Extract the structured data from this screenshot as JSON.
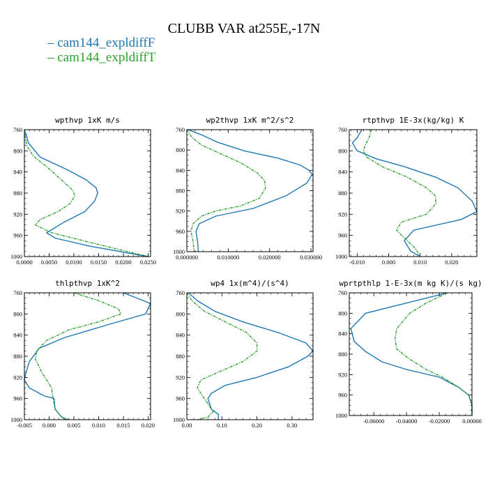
{
  "title": "CLUBB VAR at255E,-17N",
  "colors": {
    "series1": "#1f77b4",
    "series2": "#2ca02c"
  },
  "legend": [
    {
      "label": "cam144_expldiffF",
      "color": "#1f77b4"
    },
    {
      "label": "cam144_expldiffT",
      "color": "#2ca02c"
    }
  ],
  "chart_data": [
    {
      "type": "line",
      "title": "wpthvp  1xK m/s",
      "xlim": [
        0.0,
        0.0255
      ],
      "ylim": [
        760,
        1000
      ],
      "xticks": [
        0.0,
        0.005,
        0.01,
        0.015,
        0.02,
        0.025
      ],
      "xtick_labels": [
        "0.0000",
        "0.0050",
        "0.0100",
        "0.0150",
        "0.0200",
        "0.0250"
      ],
      "yticks": [
        760,
        800,
        840,
        880,
        920,
        960,
        1000
      ],
      "series": [
        {
          "name": "cam144_expldiffF",
          "x": [
            0.0,
            0.0004,
            0.0008,
            0.0032,
            0.0085,
            0.0125,
            0.0145,
            0.0148,
            0.0142,
            0.0122,
            0.008,
            0.0045,
            0.0062,
            0.013,
            0.025
          ],
          "y": [
            760,
            770,
            785,
            812,
            835,
            855,
            870,
            880,
            895,
            915,
            935,
            955,
            965,
            980,
            1000
          ]
        },
        {
          "name": "cam144_expldiffT",
          "x": [
            0.0,
            0.0002,
            0.0005,
            0.0018,
            0.0045,
            0.0075,
            0.0098,
            0.0102,
            0.0092,
            0.0068,
            0.0032,
            0.0022,
            0.0055,
            0.014,
            0.025
          ],
          "y": [
            760,
            775,
            790,
            810,
            830,
            855,
            875,
            885,
            900,
            915,
            930,
            940,
            955,
            975,
            1000
          ]
        }
      ]
    },
    {
      "type": "line",
      "title": "wp2thvp  1xK m^2/s^2",
      "xlim": [
        0.0,
        0.0305
      ],
      "ylim": [
        760,
        1000
      ],
      "xticks": [
        0.0,
        0.01,
        0.02,
        0.03
      ],
      "xtick_labels": [
        "0.000000",
        "0.010000",
        "0.020000",
        "0.030000"
      ],
      "yticks": [
        760,
        800,
        840,
        880,
        920,
        960,
        1000
      ],
      "series": [
        {
          "name": "cam144_expldiffF",
          "x": [
            0.0003,
            0.0035,
            0.0075,
            0.014,
            0.022,
            0.0275,
            0.0295,
            0.0303,
            0.029,
            0.024,
            0.016,
            0.007,
            0.003,
            0.0022,
            0.0026,
            0.0028
          ],
          "y": [
            760,
            770,
            785,
            802,
            816,
            830,
            840,
            848,
            865,
            890,
            915,
            930,
            945,
            960,
            980,
            1000
          ]
        },
        {
          "name": "cam144_expldiffT",
          "x": [
            0.0,
            0.0012,
            0.0035,
            0.0075,
            0.013,
            0.017,
            0.0188,
            0.019,
            0.0175,
            0.013,
            0.007,
            0.0035,
            0.0015,
            0.001,
            0.0015,
            0.0018
          ],
          "y": [
            760,
            775,
            790,
            805,
            825,
            845,
            860,
            875,
            895,
            910,
            920,
            930,
            945,
            960,
            980,
            1000
          ]
        }
      ]
    },
    {
      "type": "line",
      "title": "rtpthvp  1E-3x(kg/kg) K",
      "xlim": [
        -0.0125,
        0.028
      ],
      "ylim": [
        760,
        1000
      ],
      "xticks": [
        -0.01,
        0.0,
        0.01,
        0.02
      ],
      "xtick_labels": [
        "-0.010",
        "0.000",
        "0.010",
        "0.020"
      ],
      "yticks": [
        760,
        800,
        840,
        880,
        920,
        960,
        1000
      ],
      "series": [
        {
          "name": "cam144_expldiffF",
          "x": [
            -0.0085,
            -0.01,
            -0.0115,
            -0.01,
            -0.004,
            0.005,
            0.015,
            0.022,
            0.0265,
            0.028,
            0.023,
            0.008,
            0.005,
            0.007,
            0.01
          ],
          "y": [
            760,
            775,
            785,
            800,
            815,
            830,
            850,
            870,
            895,
            915,
            930,
            950,
            970,
            990,
            1000
          ]
        },
        {
          "name": "cam144_expldiffT",
          "x": [
            -0.0055,
            -0.0062,
            -0.0075,
            -0.008,
            -0.007,
            -0.002,
            0.006,
            0.012,
            0.0148,
            0.015,
            0.012,
            0.004,
            0.0025,
            0.005,
            0.0085,
            0.01
          ],
          "y": [
            760,
            775,
            790,
            800,
            812,
            830,
            850,
            870,
            885,
            900,
            920,
            935,
            950,
            965,
            985,
            1000
          ]
        }
      ]
    },
    {
      "type": "line",
      "title": "thlpthvp  1xK^2",
      "xlim": [
        -0.005,
        0.0205
      ],
      "ylim": [
        760,
        1000
      ],
      "xticks": [
        -0.005,
        0.0,
        0.005,
        0.01,
        0.015,
        0.02
      ],
      "xtick_labels": [
        "-0.005",
        "0.000",
        "0.005",
        "0.010",
        "0.015",
        "0.020"
      ],
      "yticks": [
        760,
        800,
        840,
        880,
        920,
        960,
        1000
      ],
      "series": [
        {
          "name": "cam144_expldiffF",
          "x": [
            0.015,
            0.0205,
            0.0195,
            0.012,
            0.003,
            -0.002,
            -0.004,
            -0.0048,
            -0.005,
            -0.004,
            -0.001,
            0.001,
            0.0012,
            0.0025,
            0.0035
          ],
          "y": [
            760,
            780,
            800,
            820,
            845,
            865,
            890,
            915,
            925,
            940,
            955,
            960,
            980,
            995,
            1000
          ]
        },
        {
          "name": "cam144_expldiffT",
          "x": [
            0.005,
            0.01,
            0.014,
            0.0145,
            0.01,
            0.004,
            -0.0005,
            -0.0025,
            -0.0028,
            -0.0015,
            0.0005,
            0.0008,
            0.0012,
            0.0025,
            0.004
          ],
          "y": [
            760,
            775,
            790,
            800,
            815,
            830,
            850,
            870,
            885,
            910,
            940,
            960,
            980,
            995,
            1000
          ]
        }
      ]
    },
    {
      "type": "line",
      "title": "wp4  1x(m^4)/(s^4)",
      "xlim": [
        0.0,
        0.36
      ],
      "ylim": [
        760,
        1000
      ],
      "xticks": [
        0.0,
        0.1,
        0.2,
        0.3
      ],
      "xtick_labels": [
        "0.00",
        "0.10",
        "0.20",
        "0.30"
      ],
      "yticks": [
        760,
        800,
        840,
        880,
        920,
        960,
        1000
      ],
      "series": [
        {
          "name": "cam144_expldiffF",
          "x": [
            0.005,
            0.03,
            0.08,
            0.16,
            0.26,
            0.34,
            0.36,
            0.345,
            0.29,
            0.2,
            0.11,
            0.07,
            0.06,
            0.07,
            0.09,
            0.09
          ],
          "y": [
            760,
            775,
            795,
            815,
            835,
            855,
            870,
            880,
            900,
            920,
            935,
            950,
            960,
            980,
            990,
            1000
          ]
        },
        {
          "name": "cam144_expldiffT",
          "x": [
            0.0,
            0.015,
            0.05,
            0.11,
            0.17,
            0.2,
            0.2,
            0.16,
            0.09,
            0.04,
            0.03,
            0.045,
            0.06,
            0.075,
            0.06,
            0.03
          ],
          "y": [
            760,
            775,
            795,
            815,
            835,
            855,
            870,
            890,
            910,
            925,
            940,
            955,
            970,
            985,
            995,
            1000
          ]
        }
      ]
    },
    {
      "type": "line",
      "title": "wprtpthlp  1-E-3x(m kg K)/(s kg)",
      "xlim": [
        -0.075,
        0.0
      ],
      "ylim": [
        760,
        1000
      ],
      "xticks": [
        -0.06,
        -0.04,
        -0.02,
        0.0
      ],
      "xtick_labels": [
        "-0.06000",
        "-0.04000",
        "-0.02000",
        "0.00000"
      ],
      "yticks": [
        760,
        800,
        840,
        880,
        920,
        960,
        1000
      ],
      "series": [
        {
          "name": "cam144_expldiffF",
          "x": [
            -0.015,
            -0.04,
            -0.065,
            -0.074,
            -0.072,
            -0.065,
            -0.055,
            -0.04,
            -0.02,
            -0.008,
            -0.002,
            0.0,
            0.0
          ],
          "y": [
            760,
            780,
            800,
            830,
            855,
            875,
            895,
            910,
            925,
            945,
            960,
            980,
            1000
          ]
        },
        {
          "name": "cam144_expldiffT",
          "x": [
            -0.015,
            -0.028,
            -0.038,
            -0.046,
            -0.047,
            -0.046,
            -0.038,
            -0.028,
            -0.018,
            -0.008,
            -0.002,
            0.0,
            0.0
          ],
          "y": [
            760,
            780,
            800,
            830,
            850,
            870,
            890,
            910,
            925,
            945,
            960,
            980,
            1000
          ]
        }
      ]
    }
  ]
}
